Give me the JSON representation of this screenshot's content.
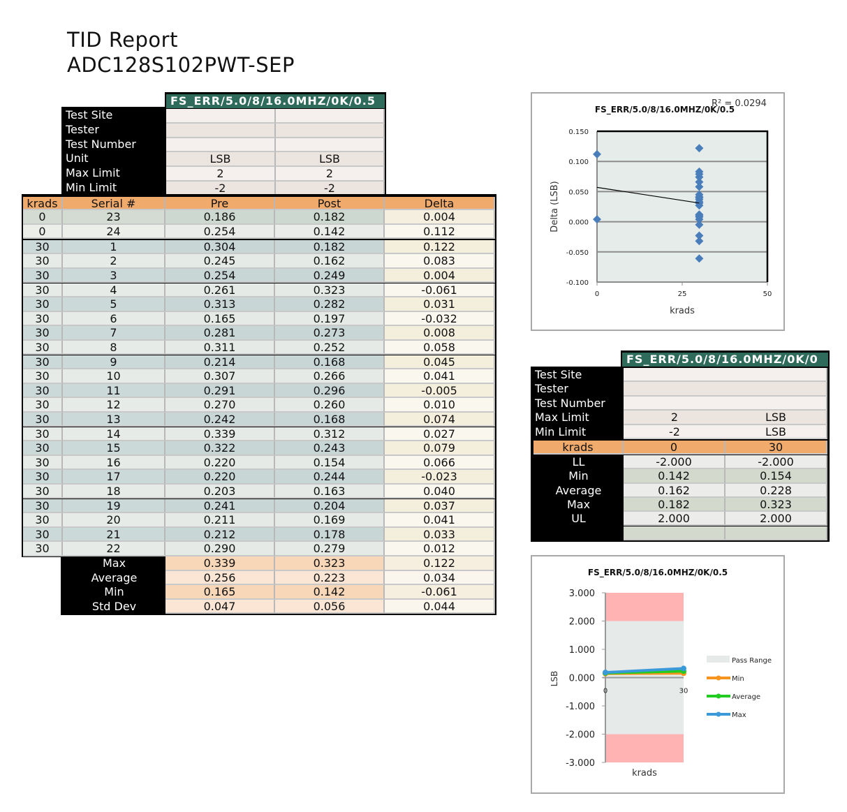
{
  "report": {
    "title": "TID Report",
    "device": "ADC128S102PWT-SEP"
  },
  "main_table": {
    "test_name": "FS_ERR/5.0/8/16.0MHZ/0K/0.5",
    "info_rows": [
      {
        "label": "Test Site",
        "pre": "",
        "post": ""
      },
      {
        "label": "Tester",
        "pre": "",
        "post": ""
      },
      {
        "label": "Test Number",
        "pre": "",
        "post": ""
      },
      {
        "label": "Unit",
        "pre": "LSB",
        "post": "LSB"
      },
      {
        "label": "Max Limit",
        "pre": "2",
        "post": "2"
      },
      {
        "label": "Min Limit",
        "pre": "-2",
        "post": "-2"
      }
    ],
    "headers": [
      "krads",
      "Serial #",
      "Pre",
      "Post",
      "Delta"
    ],
    "rows": [
      [
        "0",
        "23",
        "0.186",
        "0.182",
        "0.004"
      ],
      [
        "0",
        "24",
        "0.254",
        "0.142",
        "0.112"
      ],
      [
        "30",
        "1",
        "0.304",
        "0.182",
        "0.122"
      ],
      [
        "30",
        "2",
        "0.245",
        "0.162",
        "0.083"
      ],
      [
        "30",
        "3",
        "0.254",
        "0.249",
        "0.004"
      ],
      [
        "30",
        "4",
        "0.261",
        "0.323",
        "-0.061"
      ],
      [
        "30",
        "5",
        "0.313",
        "0.282",
        "0.031"
      ],
      [
        "30",
        "6",
        "0.165",
        "0.197",
        "-0.032"
      ],
      [
        "30",
        "7",
        "0.281",
        "0.273",
        "0.008"
      ],
      [
        "30",
        "8",
        "0.311",
        "0.252",
        "0.058"
      ],
      [
        "30",
        "9",
        "0.214",
        "0.168",
        "0.045"
      ],
      [
        "30",
        "10",
        "0.307",
        "0.266",
        "0.041"
      ],
      [
        "30",
        "11",
        "0.291",
        "0.296",
        "-0.005"
      ],
      [
        "30",
        "12",
        "0.270",
        "0.260",
        "0.010"
      ],
      [
        "30",
        "13",
        "0.242",
        "0.168",
        "0.074"
      ],
      [
        "30",
        "14",
        "0.339",
        "0.312",
        "0.027"
      ],
      [
        "30",
        "15",
        "0.322",
        "0.243",
        "0.079"
      ],
      [
        "30",
        "16",
        "0.220",
        "0.154",
        "0.066"
      ],
      [
        "30",
        "17",
        "0.220",
        "0.244",
        "-0.023"
      ],
      [
        "30",
        "18",
        "0.203",
        "0.163",
        "0.040"
      ],
      [
        "30",
        "19",
        "0.241",
        "0.204",
        "0.037"
      ],
      [
        "30",
        "20",
        "0.211",
        "0.169",
        "0.041"
      ],
      [
        "30",
        "21",
        "0.212",
        "0.178",
        "0.033"
      ],
      [
        "30",
        "22",
        "0.290",
        "0.279",
        "0.012"
      ]
    ],
    "summary": [
      {
        "label": "Max",
        "pre": "0.339",
        "post": "0.323",
        "delta": "0.122"
      },
      {
        "label": "Average",
        "pre": "0.256",
        "post": "0.223",
        "delta": "0.034"
      },
      {
        "label": "Min",
        "pre": "0.165",
        "post": "0.142",
        "delta": "-0.061"
      },
      {
        "label": "Std Dev",
        "pre": "0.047",
        "post": "0.056",
        "delta": "0.044"
      }
    ]
  },
  "summary_table": {
    "test_name": "FS_ERR/5.0/8/16.0MHZ/0K/0",
    "info_rows": [
      {
        "label": "Test Site",
        "a": "",
        "b": ""
      },
      {
        "label": "Tester",
        "a": "",
        "b": ""
      },
      {
        "label": "Test Number",
        "a": "",
        "b": ""
      },
      {
        "label": "Max Limit",
        "a": "2",
        "b": "LSB"
      },
      {
        "label": "Min Limit",
        "a": "-2",
        "b": "LSB"
      }
    ],
    "header": {
      "label": "krads",
      "a": "0",
      "b": "30"
    },
    "rows": [
      {
        "label": "LL",
        "a": "-2.000",
        "b": "-2.000"
      },
      {
        "label": "Min",
        "a": "0.142",
        "b": "0.154"
      },
      {
        "label": "Average",
        "a": "0.162",
        "b": "0.228"
      },
      {
        "label": "Max",
        "a": "0.182",
        "b": "0.323"
      },
      {
        "label": "UL",
        "a": "2.000",
        "b": "2.000"
      },
      {
        "label": "",
        "a": "",
        "b": ""
      }
    ]
  },
  "chart_data": [
    {
      "type": "scatter",
      "title": "FS_ERR/5.0/8/16.0MHZ/0K/0.5",
      "xlabel": "krads",
      "ylabel": "Delta (LSB)",
      "xlim": [
        0,
        50
      ],
      "ylim": [
        -0.1,
        0.15
      ],
      "xticks": [
        "0",
        "25",
        "50"
      ],
      "yticks": [
        "0.150",
        "0.100",
        "0.050",
        "0.000",
        "-0.050",
        "-0.100"
      ],
      "grid": true,
      "annotation": "R² = 0.0294",
      "trendline": {
        "x": [
          0,
          30
        ],
        "y": [
          0.057,
          0.031
        ]
      },
      "x": [
        0,
        0,
        30,
        30,
        30,
        30,
        30,
        30,
        30,
        30,
        30,
        30,
        30,
        30,
        30,
        30,
        30,
        30,
        30,
        30,
        30,
        30,
        30,
        30
      ],
      "y": [
        0.004,
        0.112,
        0.122,
        0.083,
        0.004,
        -0.061,
        0.031,
        -0.032,
        0.008,
        0.058,
        0.045,
        0.041,
        -0.005,
        0.01,
        0.074,
        0.027,
        0.079,
        0.066,
        -0.023,
        0.04,
        0.037,
        0.041,
        0.033,
        0.012
      ],
      "color": "#4a7ebb"
    },
    {
      "type": "line",
      "title": "FS_ERR/5.0/8/16.0MHZ/0K/0.5",
      "xlabel": "krads",
      "ylabel": "LSB",
      "categories": [
        "0",
        "30"
      ],
      "ylim": [
        -3,
        3
      ],
      "yticks": [
        "3.000",
        "2.000",
        "1.000",
        "0.000",
        "-1.000",
        "-2.000",
        "-3.000"
      ],
      "legend": "right",
      "pass_range": [
        -2,
        2
      ],
      "series": [
        {
          "name": "Pass Range",
          "color": "#e6ebe9"
        },
        {
          "name": "Min",
          "values": [
            0.142,
            0.154
          ],
          "color": "#f7941d"
        },
        {
          "name": "Average",
          "values": [
            0.162,
            0.228
          ],
          "color": "#22cc22"
        },
        {
          "name": "Max",
          "values": [
            0.182,
            0.323
          ],
          "color": "#3a9ad9"
        }
      ],
      "fail_color": "#ffb3b3"
    }
  ]
}
